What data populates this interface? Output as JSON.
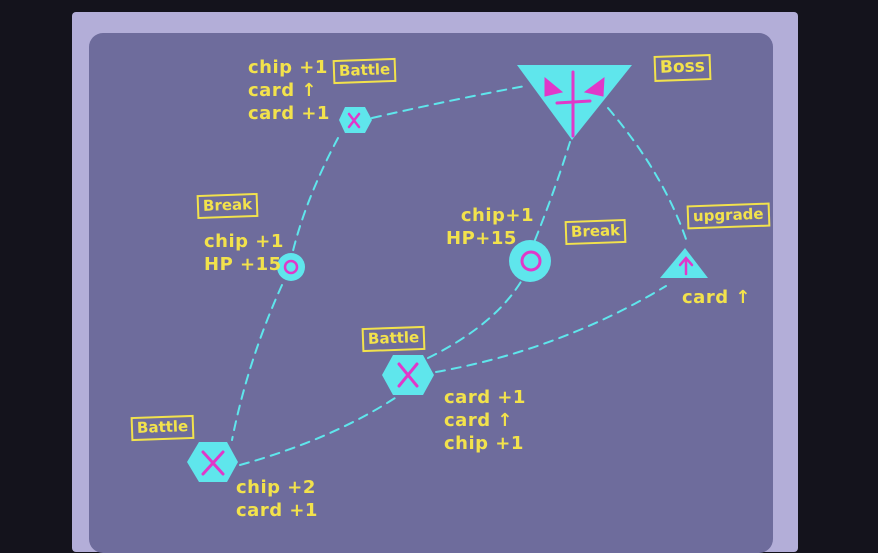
{
  "colors": {
    "background": "#14131c",
    "frame": "#b3aed8",
    "board": "#6e6c9c",
    "node": "#5fe6ec",
    "node_mark": "#e038c9",
    "label": "#f2e24c",
    "path": "#5fe6ec"
  },
  "nodes": {
    "battle_top": {
      "tag": "Battle",
      "rewards": [
        "chip +1",
        "card ↑",
        "card +1"
      ]
    },
    "break_left": {
      "tag": "Break",
      "rewards": [
        "chip +1",
        "HP +15"
      ]
    },
    "battle_bottom_left": {
      "tag": "Battle",
      "rewards": [
        "chip +2",
        "card +1"
      ]
    },
    "battle_middle": {
      "tag": "Battle",
      "rewards": [
        "card +1",
        "card ↑",
        "chip +1"
      ]
    },
    "break_center": {
      "tag": "Break",
      "rewards": [
        "chip+1",
        "HP+15"
      ]
    },
    "boss": {
      "tag": "Boss"
    },
    "upgrade": {
      "tag": "upgrade",
      "rewards": [
        "card ↑"
      ]
    }
  }
}
